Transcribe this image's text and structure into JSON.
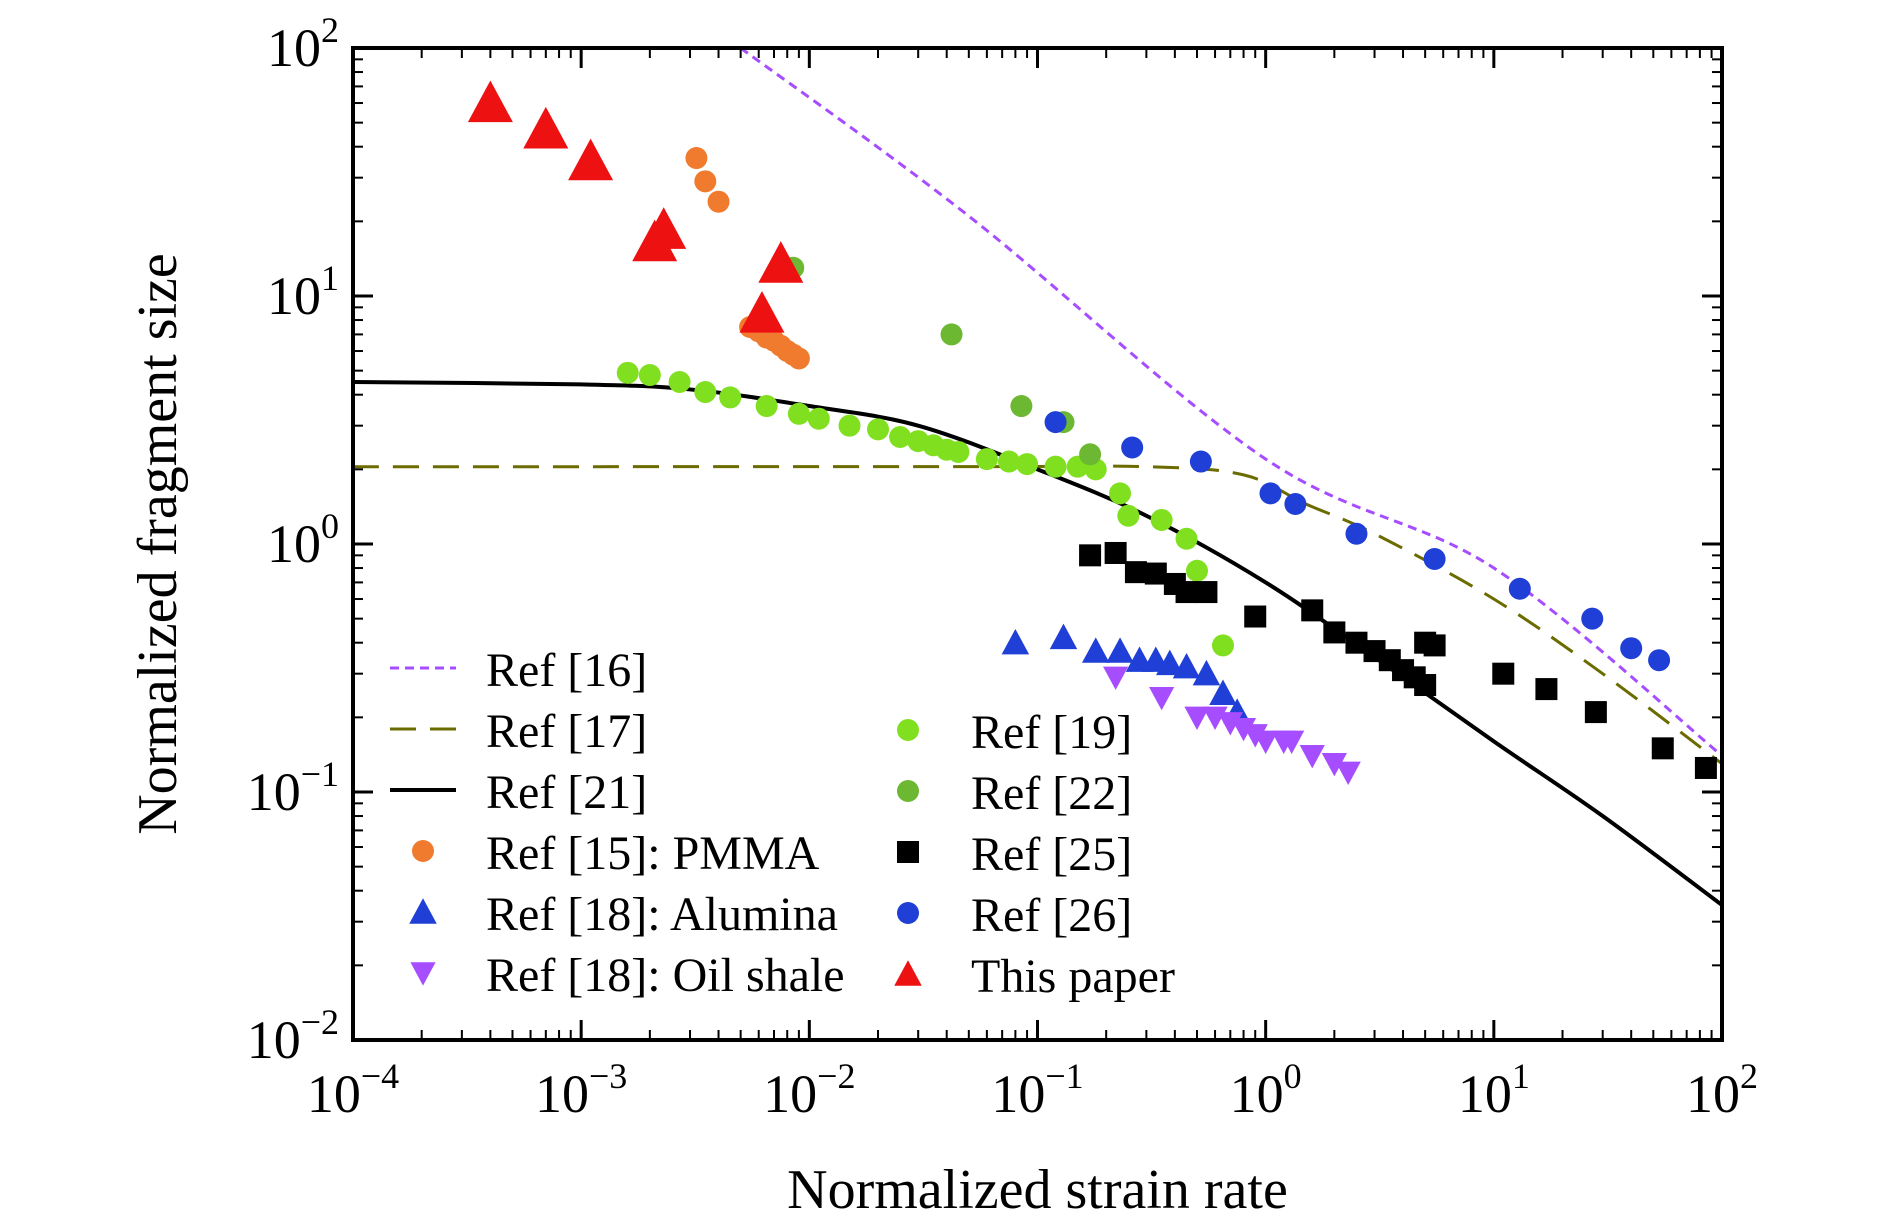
{
  "chart_data": {
    "type": "scatter",
    "xlabel": "Normalized strain rate",
    "ylabel": "Normalized fragment size",
    "xscale": "log",
    "yscale": "log",
    "xlim": [
      0.0001,
      100
    ],
    "ylim": [
      0.01,
      100
    ],
    "grid": false,
    "legend_position": "bottom-left",
    "x_ticks": [
      {
        "value": 0.0001,
        "base": "10",
        "exp": "−4"
      },
      {
        "value": 0.001,
        "base": "10",
        "exp": "−3"
      },
      {
        "value": 0.01,
        "base": "10",
        "exp": "−2"
      },
      {
        "value": 0.1,
        "base": "10",
        "exp": "−1"
      },
      {
        "value": 1,
        "base": "10",
        "exp": "0"
      },
      {
        "value": 10,
        "base": "10",
        "exp": "1"
      },
      {
        "value": 100,
        "base": "10",
        "exp": "2"
      }
    ],
    "y_ticks": [
      {
        "value": 0.01,
        "base": "10",
        "exp": "−2"
      },
      {
        "value": 0.1,
        "base": "10",
        "exp": "−1"
      },
      {
        "value": 1,
        "base": "10",
        "exp": "0"
      },
      {
        "value": 10,
        "base": "10",
        "exp": "1"
      },
      {
        "value": 100,
        "base": "10",
        "exp": "2"
      }
    ],
    "series": [
      {
        "name": "Ref [16]",
        "kind": "line",
        "dash": "dense-dash",
        "color": "#a64dff",
        "points": [
          [
            0.005,
            100
          ],
          [
            0.05,
            21
          ],
          [
            1,
            2.2
          ],
          [
            10,
            0.8
          ],
          [
            100,
            0.14
          ]
        ]
      },
      {
        "name": "Ref [17]",
        "kind": "line",
        "dash": "dash",
        "color": "#6b6b00",
        "points": [
          [
            0.0001,
            2.05
          ],
          [
            0.05,
            2.05
          ],
          [
            0.3,
            2.05
          ],
          [
            0.8,
            1.9
          ],
          [
            1.5,
            1.45
          ],
          [
            3,
            1.1
          ],
          [
            10,
            0.6
          ],
          [
            30,
            0.3
          ],
          [
            100,
            0.13
          ]
        ]
      },
      {
        "name": "Ref [21]",
        "kind": "line",
        "dash": "solid",
        "color": "#000000",
        "points": [
          [
            0.0001,
            4.5
          ],
          [
            0.001,
            4.4
          ],
          [
            0.003,
            4.2
          ],
          [
            0.01,
            3.6
          ],
          [
            0.03,
            3.0
          ],
          [
            0.1,
            2.0
          ],
          [
            0.3,
            1.3
          ],
          [
            1,
            0.7
          ],
          [
            3,
            0.35
          ],
          [
            10,
            0.16
          ],
          [
            30,
            0.08
          ],
          [
            100,
            0.035
          ]
        ]
      },
      {
        "name": "Ref [15]: PMMA",
        "kind": "marker",
        "marker": "circle",
        "color": "#f07a2e",
        "points": [
          [
            0.0032,
            36
          ],
          [
            0.0035,
            29
          ],
          [
            0.004,
            24
          ],
          [
            0.0055,
            7.5
          ],
          [
            0.006,
            7.2
          ],
          [
            0.0065,
            6.8
          ],
          [
            0.007,
            6.6
          ],
          [
            0.0075,
            6.3
          ],
          [
            0.008,
            6.0
          ],
          [
            0.0085,
            5.8
          ],
          [
            0.009,
            5.6
          ]
        ]
      },
      {
        "name": "Ref [18]: Alumina",
        "kind": "marker",
        "marker": "triangle-up",
        "color": "#1f3fd6",
        "points": [
          [
            0.08,
            0.4
          ],
          [
            0.13,
            0.42
          ],
          [
            0.18,
            0.37
          ],
          [
            0.23,
            0.37
          ],
          [
            0.28,
            0.34
          ],
          [
            0.33,
            0.34
          ],
          [
            0.38,
            0.33
          ],
          [
            0.45,
            0.32
          ],
          [
            0.55,
            0.3
          ],
          [
            0.65,
            0.25
          ],
          [
            0.75,
            0.21
          ]
        ]
      },
      {
        "name": "Ref [18]: Oil shale",
        "kind": "marker",
        "marker": "triangle-down",
        "color": "#a64dff",
        "points": [
          [
            0.22,
            0.29
          ],
          [
            0.35,
            0.24
          ],
          [
            0.5,
            0.2
          ],
          [
            0.6,
            0.2
          ],
          [
            0.7,
            0.19
          ],
          [
            0.8,
            0.18
          ],
          [
            0.9,
            0.17
          ],
          [
            1.0,
            0.16
          ],
          [
            1.2,
            0.16
          ],
          [
            1.3,
            0.16
          ],
          [
            1.6,
            0.14
          ],
          [
            2.0,
            0.13
          ],
          [
            2.3,
            0.12
          ]
        ]
      },
      {
        "name": "Ref [19]",
        "kind": "marker",
        "marker": "circle",
        "color": "#80e020",
        "points": [
          [
            0.0016,
            4.9
          ],
          [
            0.002,
            4.8
          ],
          [
            0.0027,
            4.5
          ],
          [
            0.0035,
            4.1
          ],
          [
            0.0045,
            3.9
          ],
          [
            0.0065,
            3.6
          ],
          [
            0.009,
            3.35
          ],
          [
            0.011,
            3.2
          ],
          [
            0.015,
            3.0
          ],
          [
            0.02,
            2.9
          ],
          [
            0.025,
            2.7
          ],
          [
            0.03,
            2.6
          ],
          [
            0.035,
            2.5
          ],
          [
            0.04,
            2.4
          ],
          [
            0.045,
            2.35
          ],
          [
            0.06,
            2.2
          ],
          [
            0.075,
            2.15
          ],
          [
            0.09,
            2.1
          ],
          [
            0.12,
            2.05
          ],
          [
            0.15,
            2.05
          ],
          [
            0.18,
            2.0
          ],
          [
            0.23,
            1.6
          ],
          [
            0.25,
            1.3
          ],
          [
            0.35,
            1.25
          ],
          [
            0.45,
            1.05
          ],
          [
            0.5,
            0.78
          ],
          [
            0.65,
            0.39
          ]
        ]
      },
      {
        "name": "Ref [22]",
        "kind": "marker",
        "marker": "circle",
        "color": "#6db833",
        "points": [
          [
            0.0085,
            13
          ],
          [
            0.042,
            7.0
          ],
          [
            0.085,
            3.6
          ],
          [
            0.13,
            3.1
          ],
          [
            0.17,
            2.3
          ]
        ]
      },
      {
        "name": "Ref [25]",
        "kind": "marker",
        "marker": "square",
        "color": "#000000",
        "points": [
          [
            0.17,
            0.9
          ],
          [
            0.22,
            0.92
          ],
          [
            0.27,
            0.77
          ],
          [
            0.33,
            0.76
          ],
          [
            0.4,
            0.69
          ],
          [
            0.45,
            0.64
          ],
          [
            0.55,
            0.64
          ],
          [
            0.9,
            0.51
          ],
          [
            1.6,
            0.54
          ],
          [
            2.0,
            0.44
          ],
          [
            2.5,
            0.4
          ],
          [
            3.0,
            0.37
          ],
          [
            3.5,
            0.34
          ],
          [
            4.0,
            0.31
          ],
          [
            4.5,
            0.29
          ],
          [
            5.0,
            0.27
          ],
          [
            5.0,
            0.4
          ],
          [
            5.5,
            0.39
          ],
          [
            11,
            0.3
          ],
          [
            17,
            0.26
          ],
          [
            28,
            0.21
          ],
          [
            55,
            0.15
          ],
          [
            85,
            0.125
          ]
        ]
      },
      {
        "name": "Ref [26]",
        "kind": "marker",
        "marker": "circle",
        "color": "#1f3fd6",
        "points": [
          [
            0.12,
            3.1
          ],
          [
            0.26,
            2.45
          ],
          [
            0.52,
            2.15
          ],
          [
            1.05,
            1.6
          ],
          [
            1.35,
            1.45
          ],
          [
            2.5,
            1.1
          ],
          [
            5.5,
            0.87
          ],
          [
            13,
            0.66
          ],
          [
            27,
            0.5
          ],
          [
            40,
            0.38
          ],
          [
            53,
            0.34
          ]
        ]
      },
      {
        "name": "This paper",
        "kind": "marker",
        "marker": "triangle-up",
        "color": "#ee1111",
        "points": [
          [
            0.0004,
            60
          ],
          [
            0.0007,
            47
          ],
          [
            0.0011,
            35
          ],
          [
            0.0021,
            16.5
          ],
          [
            0.0023,
            18.5
          ],
          [
            0.0062,
            8.5
          ],
          [
            0.0075,
            13.5
          ]
        ]
      }
    ]
  }
}
